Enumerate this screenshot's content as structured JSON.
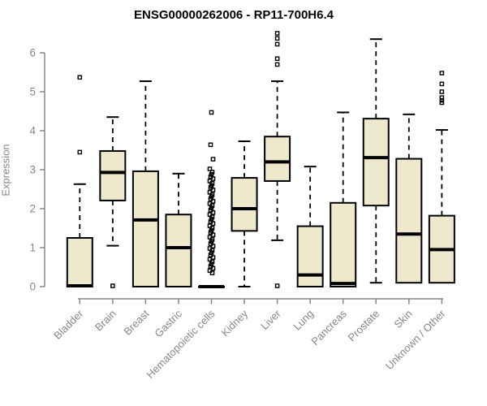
{
  "chart_data": {
    "type": "boxplot",
    "title": "ENSG00000262006 - RP11-700H6.4",
    "ylabel": "Expression",
    "xlabel": "",
    "ylim": [
      0,
      6.6
    ],
    "yticks": [
      0,
      1,
      2,
      3,
      4,
      5,
      6
    ],
    "grid": false,
    "legend": "none",
    "box_fill_color": "#EEE8CD",
    "box_line_color": "#000000",
    "axis_color": "#878787",
    "categories": [
      "Bladder",
      "Brain",
      "Breast",
      "Gastric",
      "Hematopoietic cells",
      "Kidney",
      "Liver",
      "Lung",
      "Pancreas",
      "Prostate",
      "Skin",
      "Unknown / Other"
    ],
    "boxes": [
      {
        "category": "Bladder",
        "low": 0,
        "q1": 0,
        "median": 0.02,
        "q3": 1.25,
        "high": 2.63,
        "outliers": [
          3.45,
          5.37
        ]
      },
      {
        "category": "Brain",
        "low": 1.05,
        "q1": 2.21,
        "median": 2.93,
        "q3": 3.48,
        "high": 4.35,
        "outliers": [
          0.02
        ]
      },
      {
        "category": "Breast",
        "low": 0,
        "q1": 0,
        "median": 1.71,
        "q3": 2.96,
        "high": 5.27,
        "outliers": []
      },
      {
        "category": "Gastric",
        "low": 0,
        "q1": 0,
        "median": 1.0,
        "q3": 1.85,
        "high": 2.9,
        "outliers": []
      },
      {
        "category": "Hematopoietic cells",
        "low": 0,
        "q1": 0,
        "median": 0,
        "q3": 0,
        "high": 0,
        "outliers": [
          4.47,
          3.64,
          3.27,
          3.02,
          2.94,
          2.88,
          2.82,
          2.77,
          2.71,
          2.65,
          2.59,
          2.54,
          2.48,
          2.42,
          2.36,
          2.31,
          2.25,
          2.19,
          2.13,
          2.08,
          2.02,
          1.96,
          1.9,
          1.85,
          1.79,
          1.73,
          1.67,
          1.62,
          1.56,
          1.5,
          1.44,
          1.39,
          1.33,
          1.27,
          1.21,
          1.16,
          1.1,
          1.04,
          0.98,
          0.93,
          0.87,
          0.81,
          0.75,
          0.7,
          0.64,
          0.58,
          0.52,
          0.47,
          0.41,
          0.35
        ]
      },
      {
        "category": "Kidney",
        "low": 0,
        "q1": 1.43,
        "median": 2.0,
        "q3": 2.79,
        "high": 3.73,
        "outliers": []
      },
      {
        "category": "Liver",
        "low": 1.19,
        "q1": 2.71,
        "median": 3.2,
        "q3": 3.85,
        "high": 5.27,
        "outliers": [
          6.5,
          6.37,
          6.22,
          5.85,
          5.7,
          0.02
        ]
      },
      {
        "category": "Lung",
        "low": 0,
        "q1": 0,
        "median": 0.3,
        "q3": 1.55,
        "high": 3.08,
        "outliers": []
      },
      {
        "category": "Pancreas",
        "low": 0,
        "q1": 0,
        "median": 0.08,
        "q3": 2.15,
        "high": 4.47,
        "outliers": []
      },
      {
        "category": "Prostate",
        "low": 0.1,
        "q1": 2.08,
        "median": 3.31,
        "q3": 4.31,
        "high": 6.35,
        "outliers": []
      },
      {
        "category": "Skin",
        "low": 0.1,
        "q1": 0.1,
        "median": 1.35,
        "q3": 3.28,
        "high": 4.42,
        "outliers": []
      },
      {
        "category": "Unknown / Other",
        "low": 0.1,
        "q1": 0.1,
        "median": 0.95,
        "q3": 1.82,
        "high": 4.02,
        "outliers": [
          5.48,
          5.2,
          5.0,
          4.85,
          4.78,
          4.72
        ]
      }
    ]
  }
}
